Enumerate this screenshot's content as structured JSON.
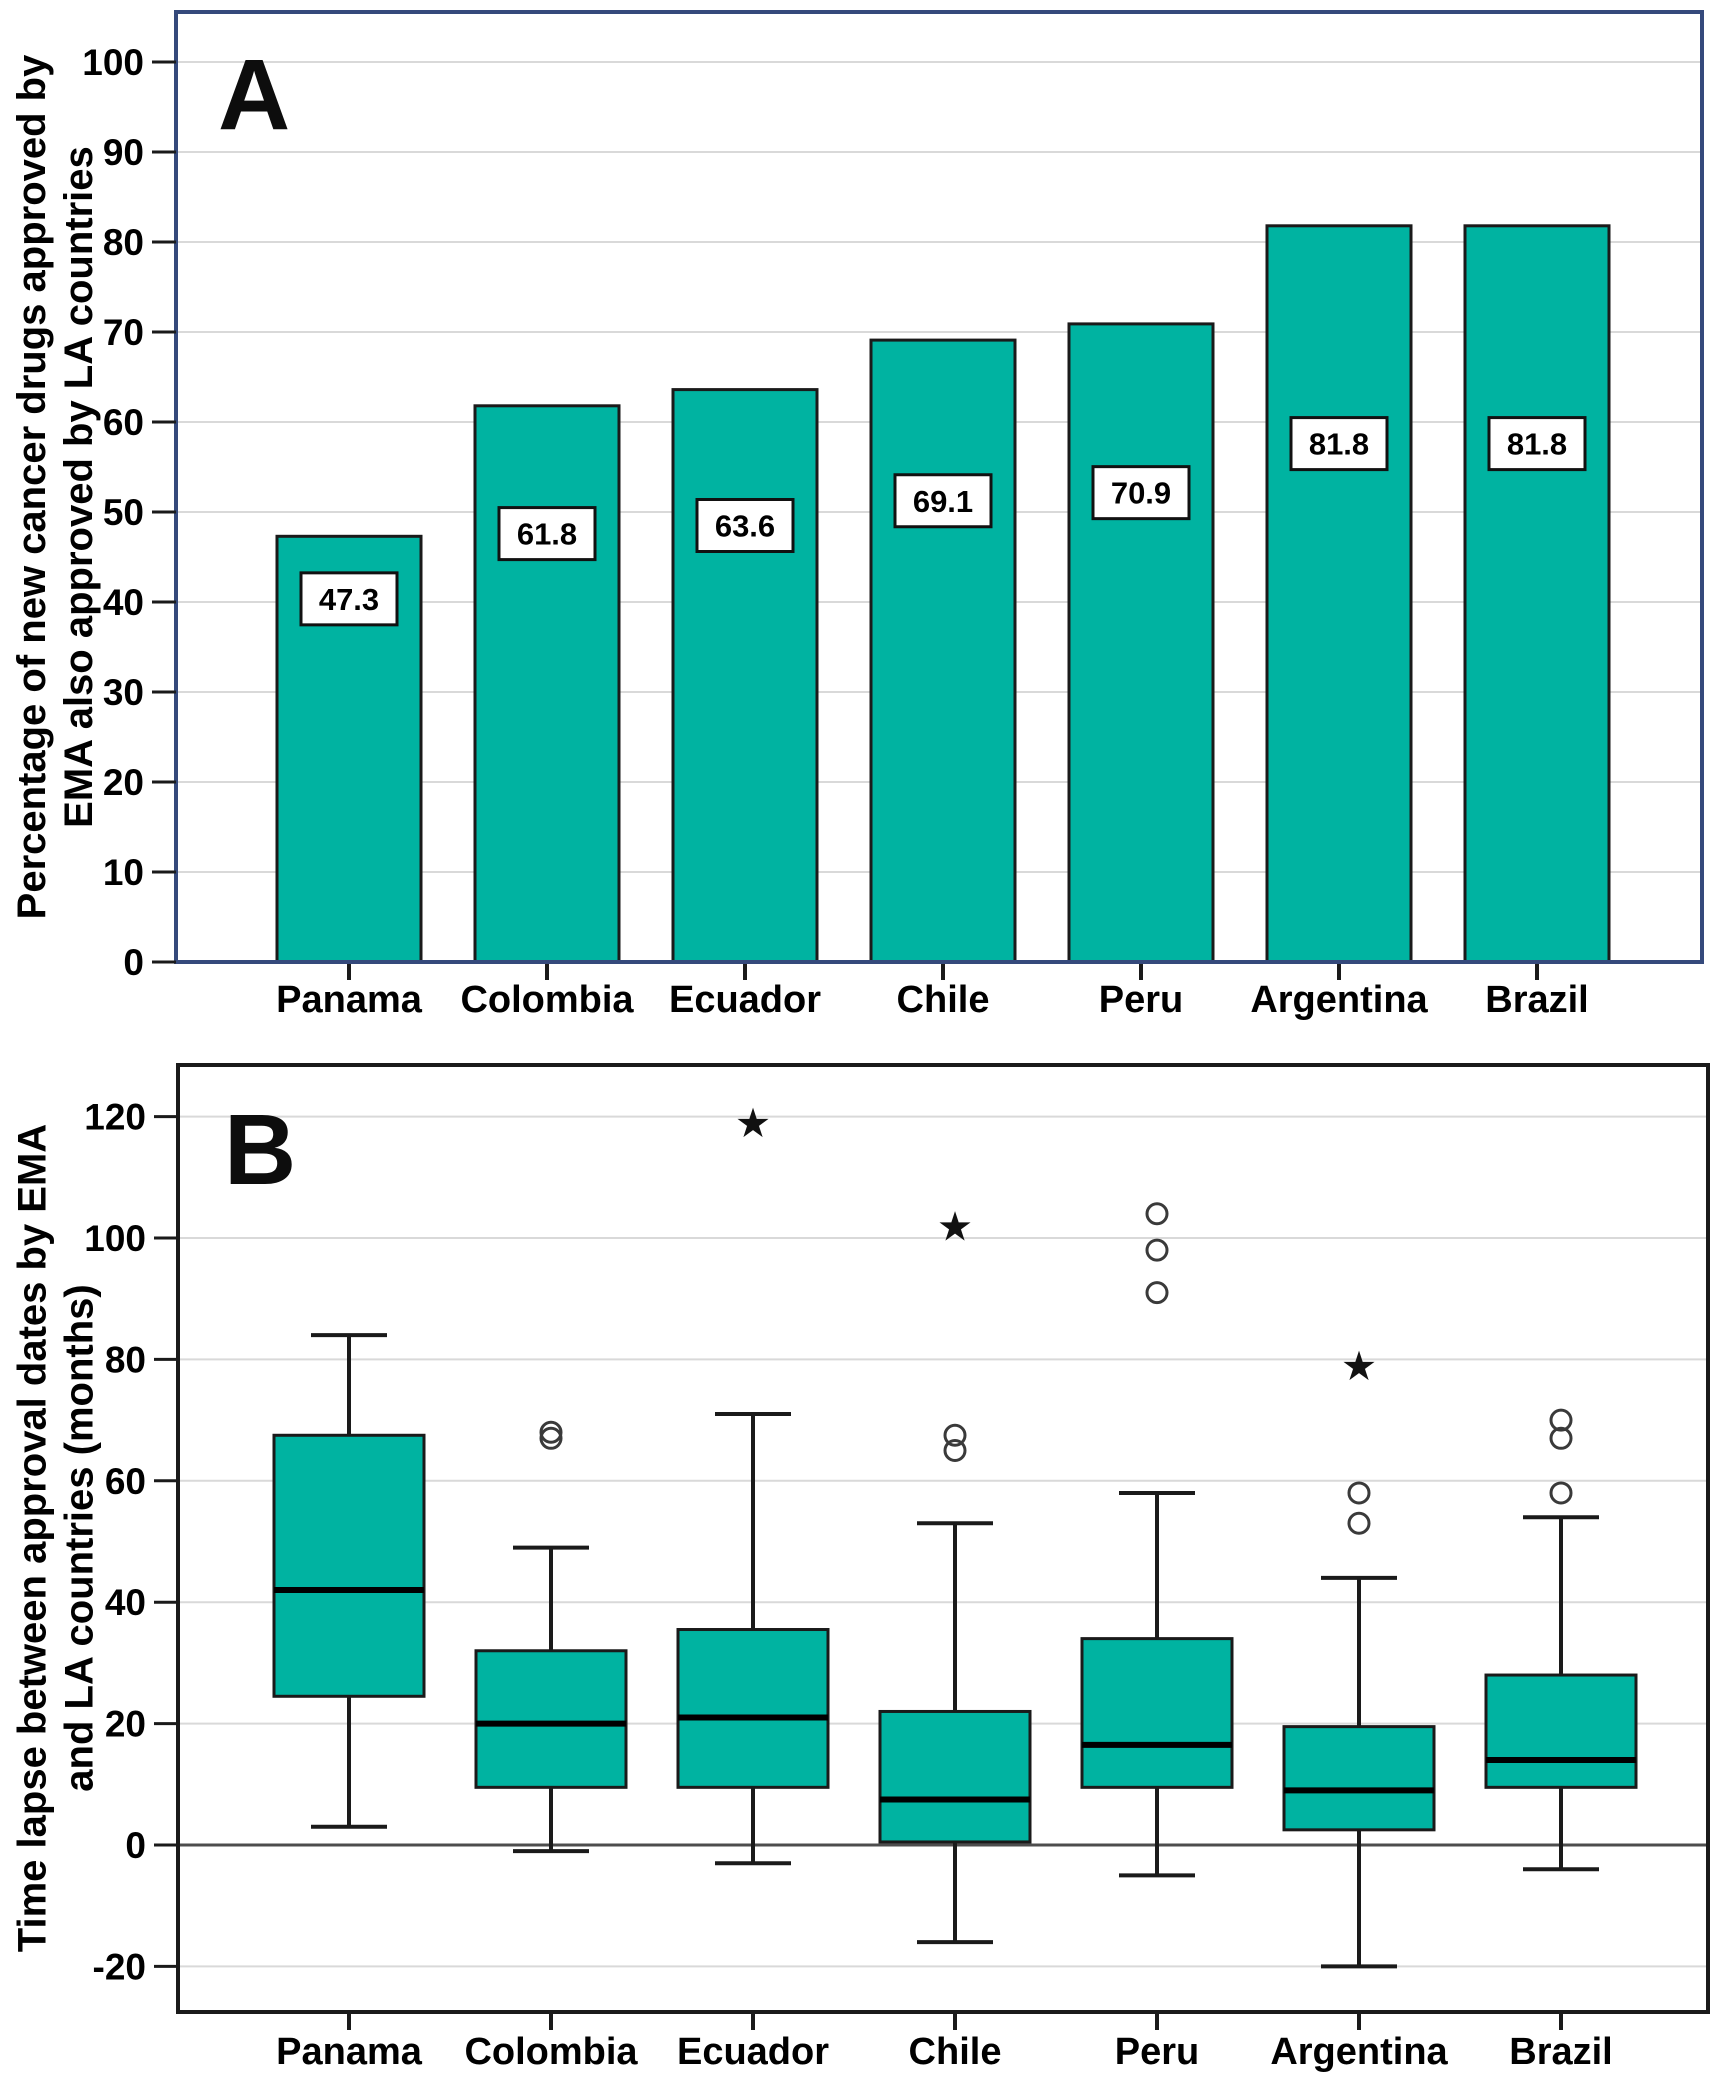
{
  "panels": {
    "a": {
      "letter": "A",
      "y_axis_title_line1": "Percentage of new cancer drugs approved by",
      "y_axis_title_line2": "EMA also approved by LA countries"
    },
    "b": {
      "letter": "B",
      "y_axis_title_line1": "Time lapse between approval dates by EMA",
      "y_axis_title_line2": "and LA countries (months)"
    }
  },
  "colors": {
    "bar_fill": "#00b3a1",
    "box_fill": "#00b3a1",
    "panel_a_border": "#35497b",
    "axis_black": "#1a1a1a",
    "gridline": "#d9d9d9",
    "zero_line": "#4d4d4d",
    "outlier_stroke": "#3a3a3a",
    "label_box_fill": "#ffffff",
    "text": "#000000"
  },
  "chart_data": [
    {
      "type": "bar",
      "panel_letter": "A",
      "title": "",
      "xlabel": "",
      "ylabel": "Percentage of new cancer drugs approved by EMA also approved by LA countries",
      "categories": [
        "Panama",
        "Colombia",
        "Ecuador",
        "Chile",
        "Peru",
        "Argentina",
        "Brazil"
      ],
      "values": [
        47.3,
        61.8,
        63.6,
        69.1,
        70.9,
        81.8,
        81.8
      ],
      "data_labels": [
        "47.3",
        "61.8",
        "63.6",
        "69.1",
        "70.9",
        "81.8",
        "81.8"
      ],
      "ylim": [
        0,
        105.5
      ],
      "yticks": [
        0,
        10,
        20,
        30,
        40,
        50,
        60,
        70,
        80,
        90,
        100
      ],
      "grid": true,
      "legend_position": "none"
    },
    {
      "type": "boxplot",
      "panel_letter": "B",
      "title": "",
      "xlabel": "",
      "ylabel": "Time lapse between approval dates by EMA and LA countries (months)",
      "categories": [
        "Panama",
        "Colombia",
        "Ecuador",
        "Chile",
        "Peru",
        "Argentina",
        "Brazil"
      ],
      "series": [
        {
          "name": "Panama",
          "whisker_low": 3,
          "q1": 24.5,
          "median": 42,
          "q3": 67.5,
          "whisker_high": 84,
          "outliers": [],
          "extreme_outliers": []
        },
        {
          "name": "Colombia",
          "whisker_low": -1,
          "q1": 9.5,
          "median": 20,
          "q3": 32,
          "whisker_high": 49,
          "outliers": [
            67,
            68
          ],
          "extreme_outliers": []
        },
        {
          "name": "Ecuador",
          "whisker_low": -3,
          "q1": 9.5,
          "median": 21,
          "q3": 35.5,
          "whisker_high": 71,
          "outliers": [],
          "extreme_outliers": [
            119
          ]
        },
        {
          "name": "Chile",
          "whisker_low": -16,
          "q1": 0.5,
          "median": 7.5,
          "q3": 22,
          "whisker_high": 53,
          "outliers": [
            65,
            67.5
          ],
          "extreme_outliers": [
            102
          ]
        },
        {
          "name": "Peru",
          "whisker_low": -5,
          "q1": 9.5,
          "median": 16.5,
          "q3": 34,
          "whisker_high": 58,
          "outliers": [
            91,
            98,
            104
          ],
          "extreme_outliers": []
        },
        {
          "name": "Argentina",
          "whisker_low": -20,
          "q1": 2.5,
          "median": 9,
          "q3": 19.5,
          "whisker_high": 44,
          "outliers": [
            53,
            58
          ],
          "extreme_outliers": [
            79
          ]
        },
        {
          "name": "Brazil",
          "whisker_low": -4,
          "q1": 9.5,
          "median": 14,
          "q3": 28,
          "whisker_high": 54,
          "outliers": [
            58,
            67,
            70
          ],
          "extreme_outliers": []
        }
      ],
      "ylim": [
        -27.5,
        128
      ],
      "yticks": [
        -20,
        0,
        20,
        40,
        60,
        80,
        100,
        120
      ],
      "grid": true,
      "legend_position": "none"
    }
  ]
}
